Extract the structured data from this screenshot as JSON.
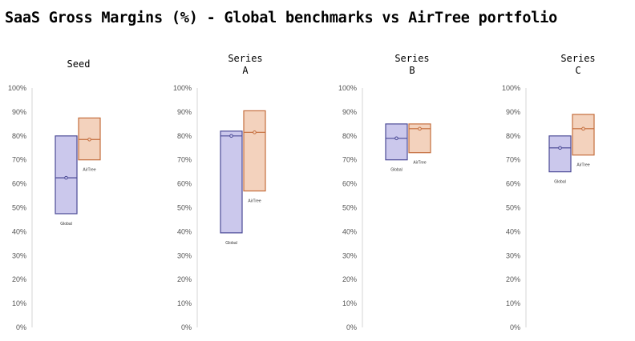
{
  "title": "SaaS Gross Margins (%) - Global benchmarks vs AirTree portfolio",
  "chart_data": {
    "type": "boxplot",
    "title": "SaaS Gross Margins (%) - Global benchmarks vs AirTree portfolio",
    "ylim": [
      0,
      100
    ],
    "yticks": [
      "0%",
      "10%",
      "20%",
      "30%",
      "40%",
      "50%",
      "60%",
      "70%",
      "80%",
      "90%",
      "100%"
    ],
    "grid": false,
    "colors": {
      "global_fill": "#cbc8ec",
      "global_stroke": "#4b4a96",
      "airtree_fill": "#f3d2bd",
      "airtree_stroke": "#c46d3d"
    },
    "panels": [
      {
        "title_lines": [
          "Seed"
        ],
        "series": [
          {
            "name": "Global",
            "low": 47.5,
            "high": 80,
            "median": 62.5
          },
          {
            "name": "AirTree",
            "low": 70,
            "high": 87.5,
            "median": 78.5
          }
        ]
      },
      {
        "title_lines": [
          "Series",
          "A"
        ],
        "series": [
          {
            "name": "Global",
            "low": 39.5,
            "high": 82,
            "median": 80
          },
          {
            "name": "AirTree",
            "low": 57,
            "high": 90.5,
            "median": 81.5
          }
        ]
      },
      {
        "title_lines": [
          "Series",
          "B"
        ],
        "series": [
          {
            "name": "Global",
            "low": 70,
            "high": 85,
            "median": 79
          },
          {
            "name": "AirTree",
            "low": 73,
            "high": 85,
            "median": 83
          }
        ]
      },
      {
        "title_lines": [
          "Series",
          "C"
        ],
        "series": [
          {
            "name": "Global",
            "low": 65,
            "high": 80,
            "median": 75
          },
          {
            "name": "AirTree",
            "low": 72,
            "high": 89,
            "median": 83
          }
        ]
      }
    ]
  }
}
